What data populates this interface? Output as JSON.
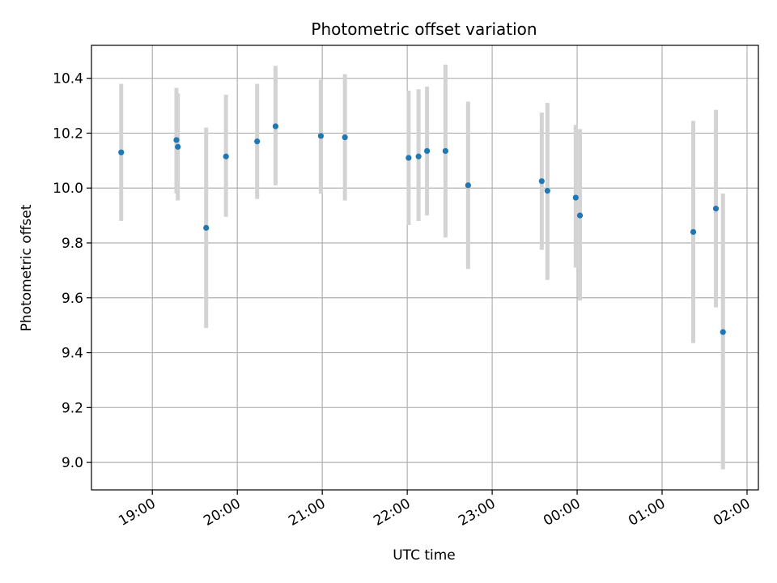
{
  "chart_data": {
    "type": "scatter",
    "title": "Photometric offset variation",
    "xlabel": "UTC time",
    "ylabel": "Photometric offset",
    "x_axis": "time",
    "xlim": [
      "18:17",
      "02:08"
    ],
    "ylim": [
      8.9,
      10.52
    ],
    "xticks": [
      "19:00",
      "20:00",
      "21:00",
      "22:00",
      "23:00",
      "00:00",
      "01:00",
      "02:00"
    ],
    "xtick_times": [
      "19:00",
      "20:00",
      "21:00",
      "22:00",
      "23:00",
      "24:00",
      "25:00",
      "26:00"
    ],
    "yticks": [
      9.0,
      9.2,
      9.4,
      9.6,
      9.8,
      10.0,
      10.2,
      10.4
    ],
    "ytick_labels": [
      "9.0",
      "9.2",
      "9.4",
      "9.6",
      "9.8",
      "10.0",
      "10.2",
      "10.4"
    ],
    "grid": true,
    "error_bar_color": "#d3d3d3",
    "point_color": "#1f77b4",
    "series": [
      {
        "points": [
          {
            "t": "18:38",
            "y": 10.13,
            "lo": 9.88,
            "hi": 10.38
          },
          {
            "t": "19:17",
            "y": 10.175,
            "lo": 9.98,
            "hi": 10.365
          },
          {
            "t": "19:18",
            "y": 10.15,
            "lo": 9.955,
            "hi": 10.345
          },
          {
            "t": "19:38",
            "y": 9.855,
            "lo": 9.49,
            "hi": 10.22
          },
          {
            "t": "19:52",
            "y": 10.115,
            "lo": 9.895,
            "hi": 10.34
          },
          {
            "t": "20:14",
            "y": 10.17,
            "lo": 9.96,
            "hi": 10.38
          },
          {
            "t": "20:27",
            "y": 10.225,
            "lo": 10.01,
            "hi": 10.445
          },
          {
            "t": "20:59",
            "y": 10.19,
            "lo": 9.98,
            "hi": 10.395
          },
          {
            "t": "21:16",
            "y": 10.185,
            "lo": 9.955,
            "hi": 10.415
          },
          {
            "t": "22:01",
            "y": 10.11,
            "lo": 9.865,
            "hi": 10.355
          },
          {
            "t": "22:08",
            "y": 10.115,
            "lo": 9.88,
            "hi": 10.36
          },
          {
            "t": "22:14",
            "y": 10.135,
            "lo": 9.9,
            "hi": 10.37
          },
          {
            "t": "22:27",
            "y": 10.135,
            "lo": 9.82,
            "hi": 10.45
          },
          {
            "t": "22:43",
            "y": 10.01,
            "lo": 9.705,
            "hi": 10.315
          },
          {
            "t": "23:35",
            "y": 10.025,
            "lo": 9.775,
            "hi": 10.275
          },
          {
            "t": "23:39",
            "y": 9.99,
            "lo": 9.665,
            "hi": 10.31
          },
          {
            "t": "23:59",
            "y": 9.965,
            "lo": 9.71,
            "hi": 10.23
          },
          {
            "t": "00:02",
            "y": 9.9,
            "lo": 9.59,
            "hi": 10.215
          },
          {
            "t": "01:22",
            "y": 9.84,
            "lo": 9.435,
            "hi": 10.245
          },
          {
            "t": "01:38",
            "y": 9.925,
            "lo": 9.565,
            "hi": 10.285
          },
          {
            "t": "01:43",
            "y": 9.475,
            "lo": 8.975,
            "hi": 9.98
          }
        ]
      }
    ]
  }
}
